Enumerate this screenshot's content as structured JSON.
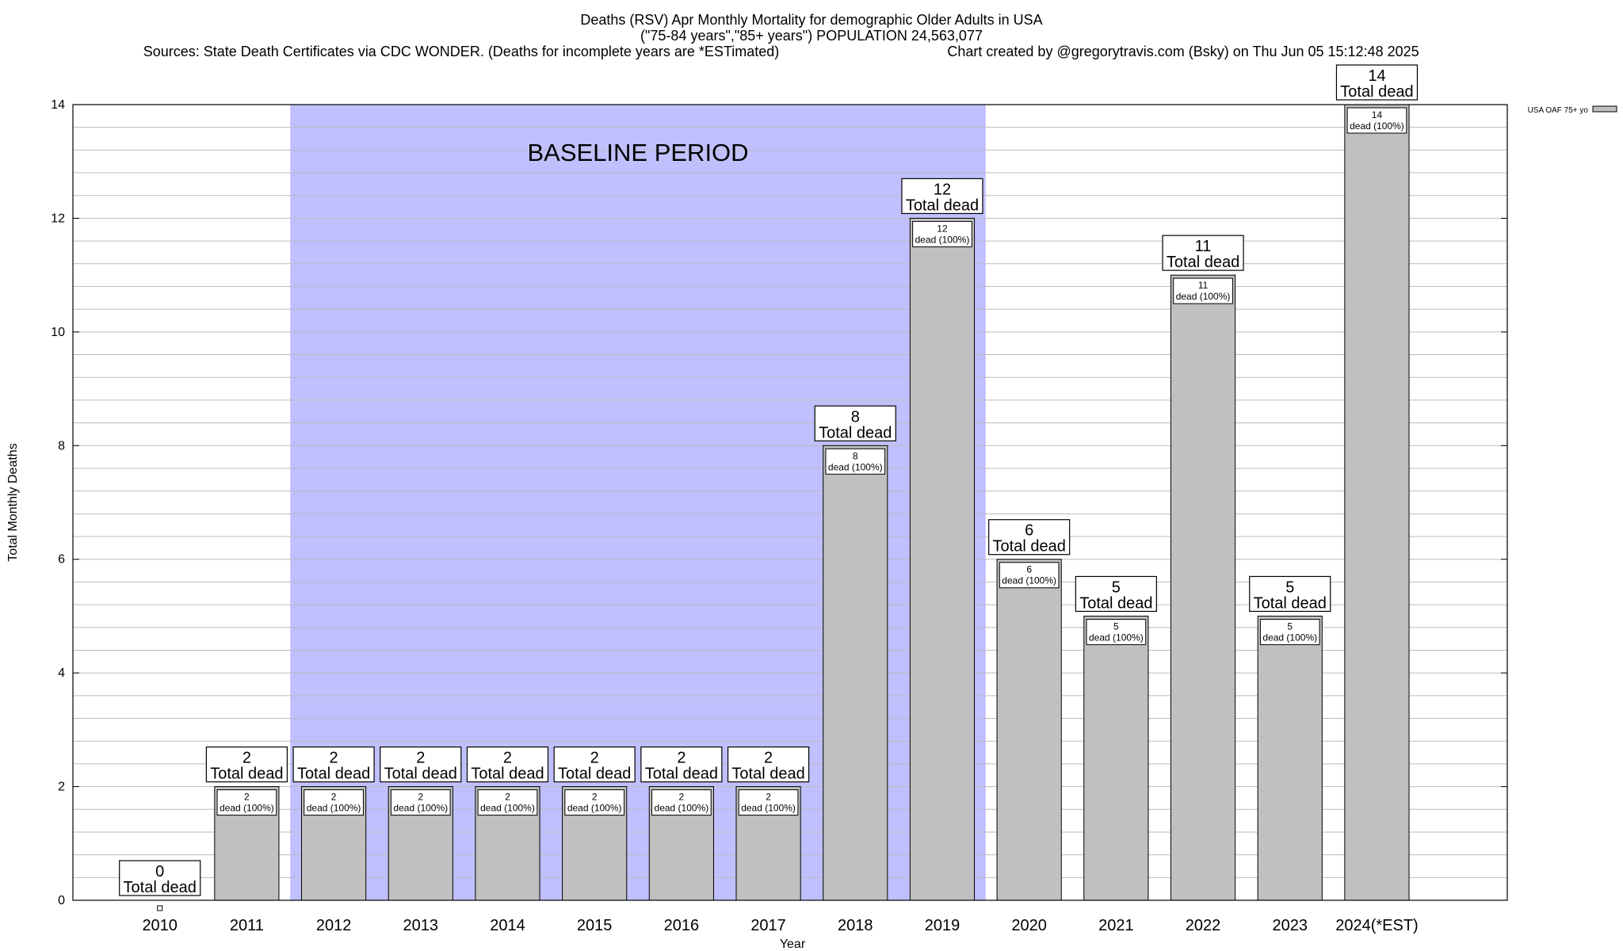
{
  "header": {
    "title_line1": "Deaths (RSV) Apr Monthly Mortality for demographic Older Adults in USA",
    "title_line2": "(\"75-84 years\",\"85+ years\") POPULATION 24,563,077",
    "sources": "Sources: State Death Certificates via CDC WONDER. (Deaths for incomplete years are *ESTimated)",
    "credit": "Chart created by @gregorytravis.com (Bsky) on Thu Jun 05 15:12:48 2025"
  },
  "chart_data": {
    "type": "bar",
    "categories": [
      "2010",
      "2011",
      "2012",
      "2013",
      "2014",
      "2015",
      "2016",
      "2017",
      "2018",
      "2019",
      "2020",
      "2021",
      "2022",
      "2023",
      "2024(*EST)"
    ],
    "series": [
      {
        "name": "USA OAF 75+ yo",
        "values": [
          0,
          2,
          2,
          2,
          2,
          2,
          2,
          2,
          8,
          12,
          6,
          5,
          11,
          5,
          14
        ]
      }
    ],
    "total_label": "Total dead",
    "inner_label_suffix": "dead (100%)",
    "xlabel": "Year",
    "ylabel": "Total Monthly Deaths",
    "ylim": [
      0,
      14
    ],
    "yticks": [
      0,
      2,
      4,
      6,
      8,
      10,
      12,
      14
    ],
    "grid": true,
    "legend": "top-right",
    "baseline": {
      "label": "BASELINE PERIOD",
      "start": "2012",
      "end": "2019"
    },
    "colors": {
      "bar": "#c0c0c0",
      "baseline": "#c0c0ff",
      "grid": "#bbbbbb"
    }
  }
}
